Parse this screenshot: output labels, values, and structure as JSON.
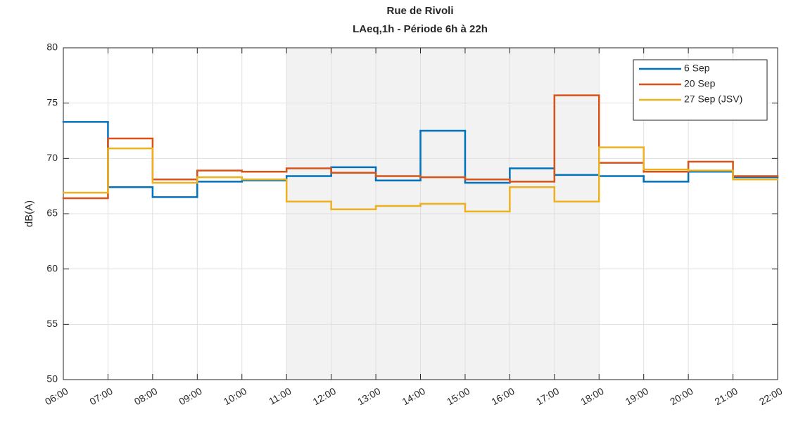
{
  "chart_data": {
    "type": "step",
    "title": "Rue de Rivoli",
    "subtitle": "LAeq,1h - Période 6h à 22h",
    "y_label": "dB(A)",
    "xlim": [
      6,
      22
    ],
    "xticks": [
      {
        "value": 6,
        "label": "06:00"
      },
      {
        "value": 7,
        "label": "07:00"
      },
      {
        "value": 8,
        "label": "08:00"
      },
      {
        "value": 9,
        "label": "09:00"
      },
      {
        "value": 10,
        "label": "10:00"
      },
      {
        "value": 11,
        "label": "11:00"
      },
      {
        "value": 12,
        "label": "12:00"
      },
      {
        "value": 13,
        "label": "13:00"
      },
      {
        "value": 14,
        "label": "14:00"
      },
      {
        "value": 15,
        "label": "15:00"
      },
      {
        "value": 16,
        "label": "16:00"
      },
      {
        "value": 17,
        "label": "17:00"
      },
      {
        "value": 18,
        "label": "18:00"
      },
      {
        "value": 19,
        "label": "19:00"
      },
      {
        "value": 20,
        "label": "20:00"
      },
      {
        "value": 21,
        "label": "21:00"
      },
      {
        "value": 22,
        "label": "22:00"
      }
    ],
    "ylim": [
      50,
      80
    ],
    "yticks": [
      50,
      55,
      60,
      65,
      70,
      75,
      80
    ],
    "grid": true,
    "legend": "northeast",
    "shaded_span": [
      11,
      18
    ],
    "x": [
      6,
      7,
      8,
      9,
      10,
      11,
      12,
      13,
      14,
      15,
      16,
      17,
      18,
      19,
      20,
      21
    ],
    "series": [
      {
        "name": "6 Sep",
        "color": "#0072bd",
        "values": [
          73.3,
          67.4,
          66.5,
          67.9,
          68.0,
          68.4,
          69.2,
          68.0,
          72.5,
          67.8,
          69.1,
          68.5,
          68.4,
          67.9,
          68.8,
          68.3
        ]
      },
      {
        "name": "20 Sep",
        "color": "#d95319",
        "values": [
          66.4,
          71.8,
          68.1,
          68.9,
          68.8,
          69.1,
          68.7,
          68.4,
          68.3,
          68.1,
          67.9,
          75.7,
          69.6,
          68.8,
          69.7,
          68.4
        ]
      },
      {
        "name": "27 Sep (JSV)",
        "color": "#edb120",
        "values": [
          66.9,
          70.9,
          67.8,
          68.3,
          68.1,
          66.1,
          65.4,
          65.7,
          65.9,
          65.2,
          67.4,
          66.1,
          71.0,
          69.0,
          68.9,
          68.1
        ]
      }
    ]
  }
}
